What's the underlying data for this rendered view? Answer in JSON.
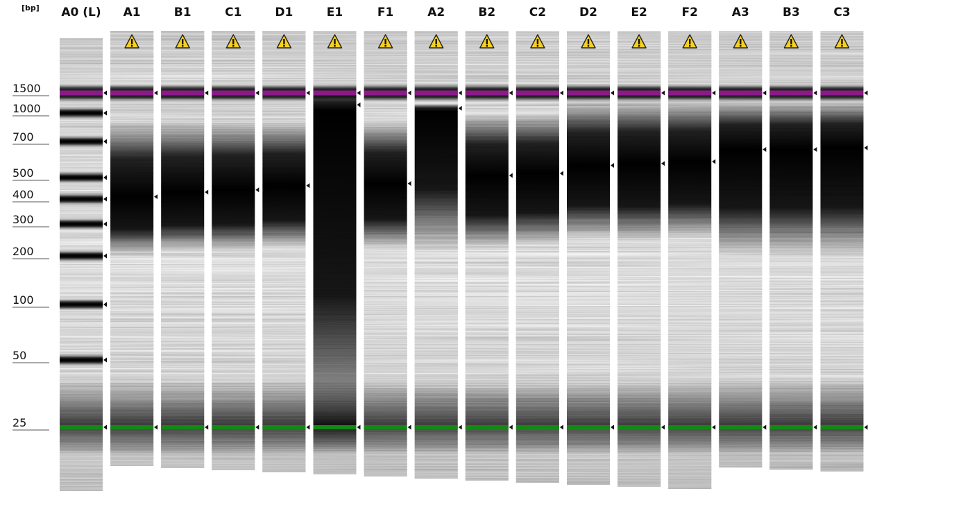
{
  "chart_data": {
    "type": "gel",
    "yunit": "[bp]",
    "y_ticks": [
      1500,
      1000,
      700,
      500,
      400,
      300,
      200,
      100,
      50,
      25
    ],
    "marker_colors": {
      "upper": "#8b1a89",
      "lower": "#128a12"
    },
    "marker_sizes": {
      "upper": 1500,
      "lower": 25
    },
    "warning_icon": "warning-triangle-icon",
    "ladder": {
      "name": "A0 (L)",
      "bands": [
        1500,
        1000,
        700,
        500,
        400,
        300,
        200,
        100,
        50,
        25
      ]
    },
    "samples": [
      {
        "name": "A1",
        "peak": 410,
        "smear": [
          200,
          900
        ],
        "warning": true
      },
      {
        "name": "B1",
        "peak": 430,
        "smear": [
          210,
          900
        ],
        "warning": true
      },
      {
        "name": "C1",
        "peak": 440,
        "smear": [
          210,
          900
        ],
        "warning": true
      },
      {
        "name": "D1",
        "peak": 460,
        "smear": [
          220,
          900
        ],
        "warning": true
      },
      {
        "name": "E1",
        "peak": 1180,
        "smear": [
          20,
          1500
        ],
        "warning": true
      },
      {
        "name": "F1",
        "peak": 470,
        "smear": [
          220,
          900
        ],
        "warning": true
      },
      {
        "name": "A2",
        "peak": 1100,
        "smear": [
          210,
          1200
        ],
        "warning": true
      },
      {
        "name": "B2",
        "peak": 510,
        "smear": [
          220,
          1000
        ],
        "warning": true
      },
      {
        "name": "C2",
        "peak": 520,
        "smear": [
          230,
          1000
        ],
        "warning": true
      },
      {
        "name": "D2",
        "peak": 560,
        "smear": [
          250,
          1300
        ],
        "warning": true
      },
      {
        "name": "E2",
        "peak": 570,
        "smear": [
          240,
          1300
        ],
        "warning": true
      },
      {
        "name": "F2",
        "peak": 580,
        "smear": [
          250,
          1300
        ],
        "warning": true
      },
      {
        "name": "A3",
        "peak": 650,
        "smear": [
          200,
          1300
        ],
        "warning": true
      },
      {
        "name": "B3",
        "peak": 650,
        "smear": [
          200,
          1300
        ],
        "warning": true
      },
      {
        "name": "C3",
        "peak": 660,
        "smear": [
          200,
          1300
        ],
        "warning": true
      }
    ]
  }
}
